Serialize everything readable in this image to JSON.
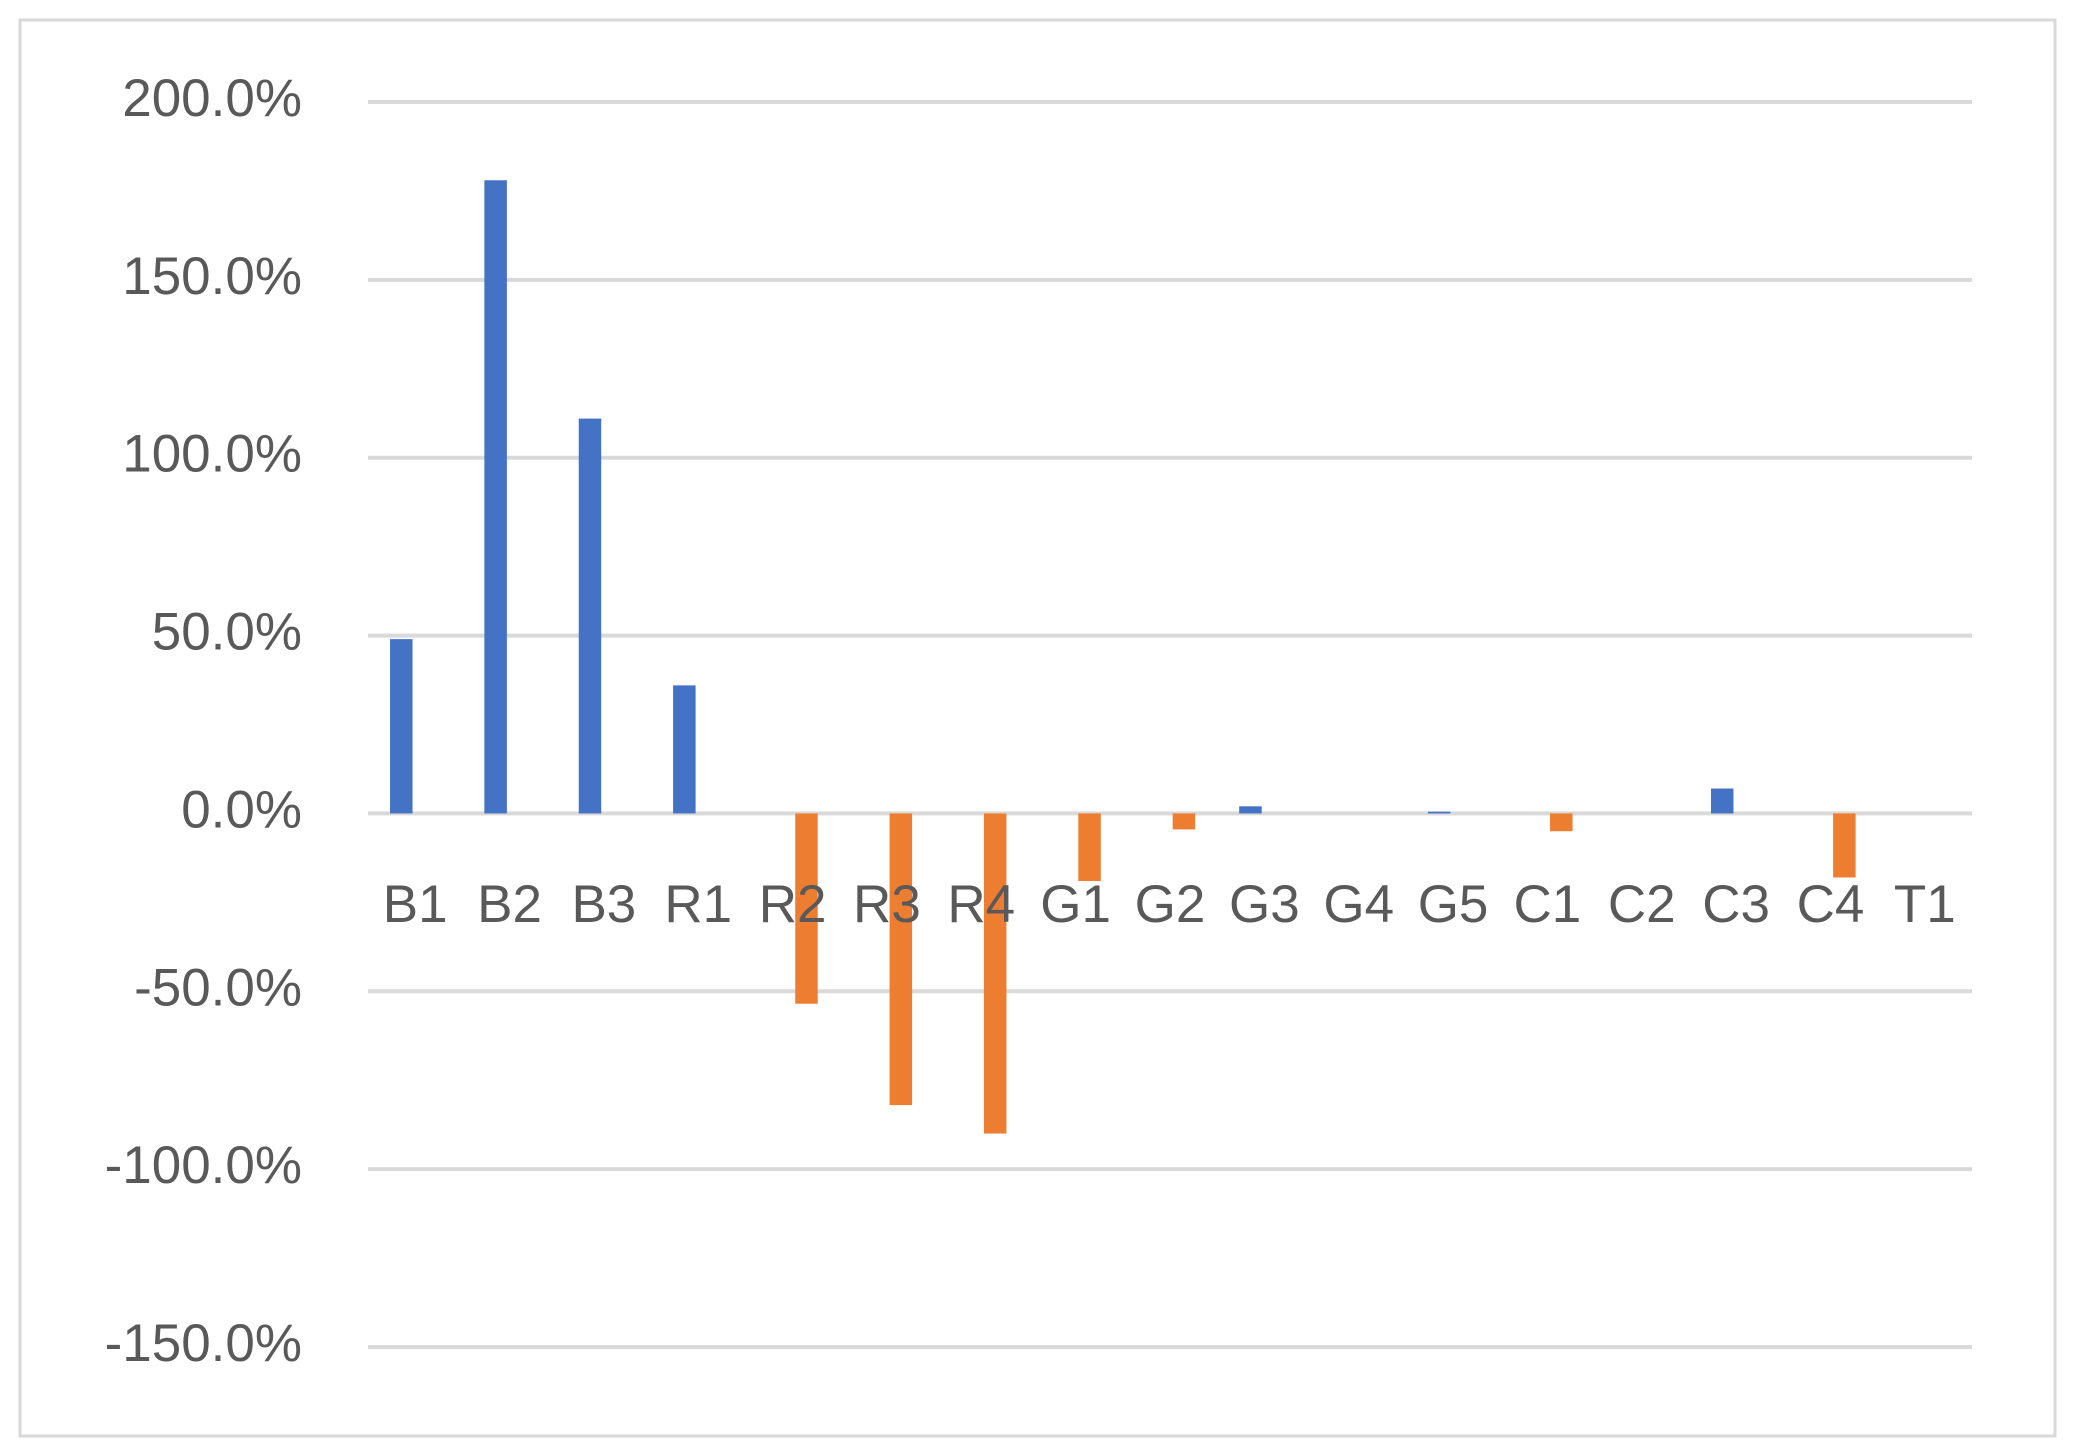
{
  "chart_data": {
    "type": "bar",
    "categories": [
      "B1",
      "B2",
      "B3",
      "R1",
      "R2",
      "R3",
      "R4",
      "G1",
      "G2",
      "G3",
      "G4",
      "G5",
      "C1",
      "C2",
      "C3",
      "C4",
      "T1"
    ],
    "series": [
      {
        "color": "#4472c4",
        "values": [
          49,
          178,
          111,
          36,
          null,
          null,
          null,
          null,
          null,
          2,
          null,
          0.5,
          null,
          null,
          7,
          null,
          null
        ]
      },
      {
        "color": "#ed7d31",
        "values": [
          null,
          null,
          null,
          null,
          -53.5,
          -82,
          -90,
          -19,
          -4.5,
          null,
          null,
          null,
          -5,
          null,
          null,
          -18,
          null
        ]
      }
    ],
    "ylim": [
      -150,
      200
    ],
    "yticks": [
      {
        "value": -150,
        "label": "-150.0%"
      },
      {
        "value": -100,
        "label": "-100.0%"
      },
      {
        "value": -50,
        "label": "-50.0%"
      },
      {
        "value": 0,
        "label": "0.0%"
      },
      {
        "value": 50,
        "label": "50.0%"
      },
      {
        "value": 100,
        "label": "100.0%"
      },
      {
        "value": 150,
        "label": "150.0%"
      },
      {
        "value": 200,
        "label": "200.0%"
      }
    ],
    "grid": true
  }
}
